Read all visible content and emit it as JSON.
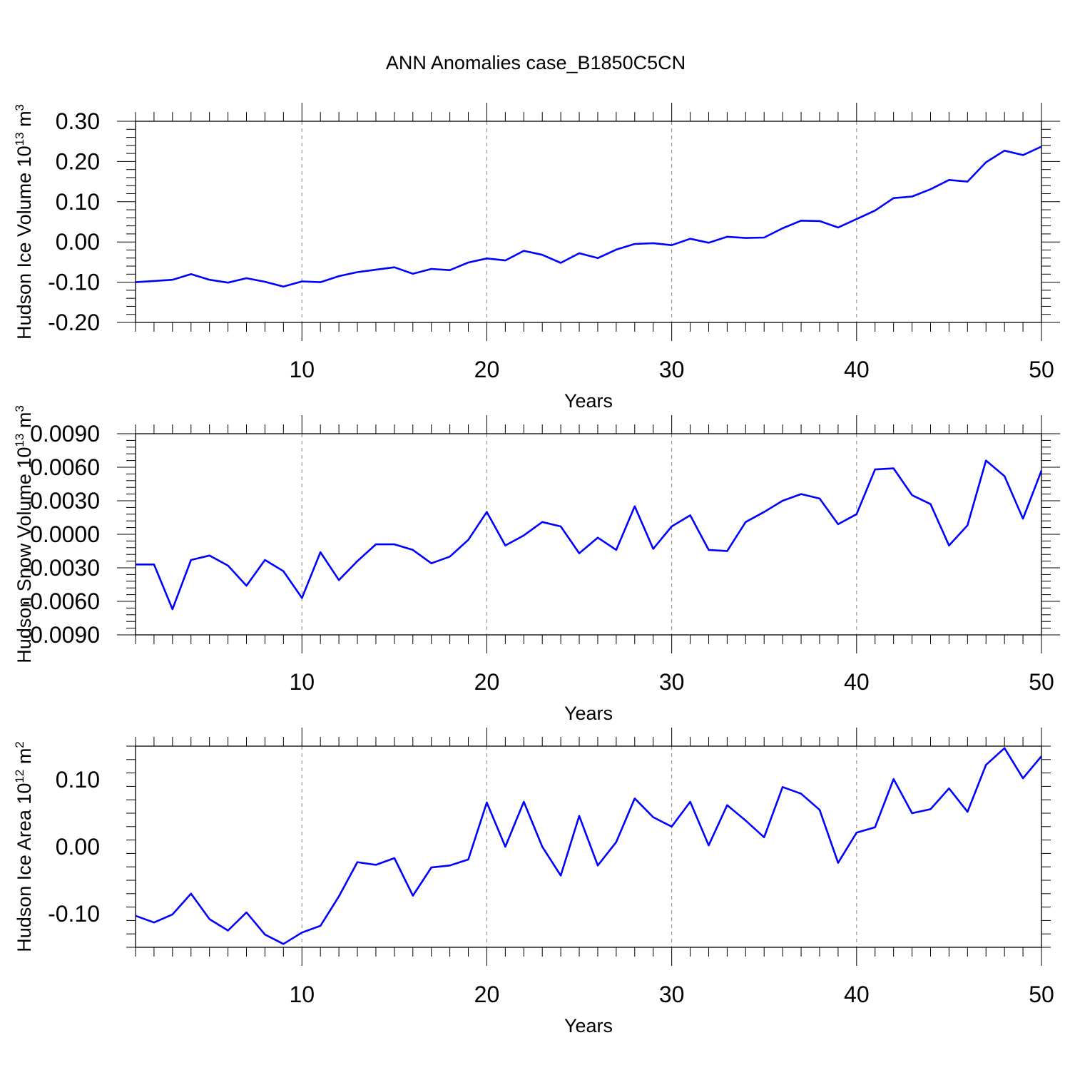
{
  "title": "ANN Anomalies case_B1850C5CN",
  "colors": {
    "line": "#0000ff",
    "axis": "#000000",
    "grid": "#888888"
  },
  "chart_data": [
    {
      "type": "line",
      "xlabel": "Years",
      "ylabel": {
        "text": "Hudson Ice Volume 10",
        "exp": "13",
        "unit": " m",
        "unit_exp": "3"
      },
      "xlim": [
        1,
        50
      ],
      "ylim": [
        -0.2,
        0.3
      ],
      "xticks": [
        10,
        20,
        30,
        40,
        50
      ],
      "xtick_labels": [
        "10",
        "20",
        "30",
        "40",
        "50"
      ],
      "yticks": [
        -0.2,
        -0.1,
        0.0,
        0.1,
        0.2,
        0.3
      ],
      "ytick_labels": [
        "-0.20",
        "-0.10",
        "0.00",
        "0.10",
        "0.20",
        "0.30"
      ],
      "x": [
        1,
        2,
        3,
        4,
        5,
        6,
        7,
        8,
        9,
        10,
        11,
        12,
        13,
        14,
        15,
        16,
        17,
        18,
        19,
        20,
        21,
        22,
        23,
        24,
        25,
        26,
        27,
        28,
        29,
        30,
        31,
        32,
        33,
        34,
        35,
        36,
        37,
        38,
        39,
        40,
        41,
        42,
        43,
        44,
        45,
        46,
        47,
        48,
        49,
        50
      ],
      "values": [
        -0.1,
        -0.097,
        -0.094,
        -0.08,
        -0.094,
        -0.101,
        -0.09,
        -0.099,
        -0.111,
        -0.098,
        -0.1,
        -0.085,
        -0.075,
        -0.069,
        -0.063,
        -0.079,
        -0.067,
        -0.07,
        -0.051,
        -0.041,
        -0.046,
        -0.022,
        -0.032,
        -0.052,
        -0.028,
        -0.04,
        -0.019,
        -0.005,
        -0.003,
        -0.008,
        0.008,
        -0.002,
        0.013,
        0.01,
        0.011,
        0.034,
        0.053,
        0.052,
        0.036,
        0.057,
        0.078,
        0.109,
        0.113,
        0.131,
        0.154,
        0.15,
        0.198,
        0.227,
        0.216,
        0.237
      ]
    },
    {
      "type": "line",
      "xlabel": "Years",
      "ylabel": {
        "text": "Hudson Snow Volume 10",
        "exp": "13",
        "unit": " m",
        "unit_exp": "3"
      },
      "xlim": [
        1,
        50
      ],
      "ylim": [
        -0.009,
        0.009
      ],
      "xticks": [
        10,
        20,
        30,
        40,
        50
      ],
      "xtick_labels": [
        "10",
        "20",
        "30",
        "40",
        "50"
      ],
      "yticks": [
        -0.009,
        -0.006,
        -0.003,
        0.0,
        0.003,
        0.006,
        0.009
      ],
      "ytick_labels": [
        "-0.0090",
        "-0.0060",
        "-0.0030",
        "0.0000",
        "0.0030",
        "0.0060",
        "0.0090"
      ],
      "x": [
        1,
        2,
        3,
        4,
        5,
        6,
        7,
        8,
        9,
        10,
        11,
        12,
        13,
        14,
        15,
        16,
        17,
        18,
        19,
        20,
        21,
        22,
        23,
        24,
        25,
        26,
        27,
        28,
        29,
        30,
        31,
        32,
        33,
        34,
        35,
        36,
        37,
        38,
        39,
        40,
        41,
        42,
        43,
        44,
        45,
        46,
        47,
        48,
        49,
        50
      ],
      "values": [
        -0.0027,
        -0.0027,
        -0.0067,
        -0.0023,
        -0.0019,
        -0.0028,
        -0.0046,
        -0.0023,
        -0.0033,
        -0.0057,
        -0.0016,
        -0.0041,
        -0.0024,
        -0.0009,
        -0.0009,
        -0.0014,
        -0.0026,
        -0.002,
        -0.0005,
        0.002,
        -0.001,
        -0.0001,
        0.0011,
        0.0007,
        -0.0017,
        -0.0003,
        -0.0014,
        0.0025,
        -0.0013,
        0.0007,
        0.0017,
        -0.0014,
        -0.0015,
        0.0011,
        0.002,
        0.003,
        0.0036,
        0.0032,
        0.0009,
        0.0018,
        0.0058,
        0.0059,
        0.0035,
        0.0027,
        -0.001,
        0.0008,
        0.0066,
        0.0052,
        0.0014,
        0.0057
      ]
    },
    {
      "type": "line",
      "xlabel": "Years",
      "ylabel": {
        "text": "Hudson Ice Area 10",
        "exp": "12",
        "unit": " m",
        "unit_exp": "2"
      },
      "xlim": [
        1,
        50
      ],
      "ylim": [
        -0.15,
        0.15
      ],
      "xticks": [
        10,
        20,
        30,
        40,
        50
      ],
      "xtick_labels": [
        "10",
        "20",
        "30",
        "40",
        "50"
      ],
      "yticks": [
        -0.1,
        0.0,
        0.1
      ],
      "ytick_labels": [
        "-0.10",
        "0.00",
        "0.10"
      ],
      "x": [
        1,
        2,
        3,
        4,
        5,
        6,
        7,
        8,
        9,
        10,
        11,
        12,
        13,
        14,
        15,
        16,
        17,
        18,
        19,
        20,
        21,
        22,
        23,
        24,
        25,
        26,
        27,
        28,
        29,
        30,
        31,
        32,
        33,
        34,
        35,
        36,
        37,
        38,
        39,
        40,
        41,
        42,
        43,
        44,
        45,
        46,
        47,
        48,
        49,
        50
      ],
      "values": [
        -0.103,
        -0.113,
        -0.101,
        -0.07,
        -0.108,
        -0.125,
        -0.098,
        -0.131,
        -0.145,
        -0.128,
        -0.118,
        -0.074,
        -0.023,
        -0.027,
        -0.017,
        -0.073,
        -0.031,
        -0.028,
        -0.019,
        0.066,
        0.0,
        0.067,
        0.0,
        -0.043,
        0.046,
        -0.028,
        0.007,
        0.072,
        0.044,
        0.03,
        0.067,
        0.002,
        0.062,
        0.039,
        0.014,
        0.089,
        0.079,
        0.055,
        -0.024,
        0.021,
        0.029,
        0.101,
        0.05,
        0.056,
        0.087,
        0.052,
        0.122,
        0.147,
        0.102,
        0.135
      ]
    }
  ]
}
